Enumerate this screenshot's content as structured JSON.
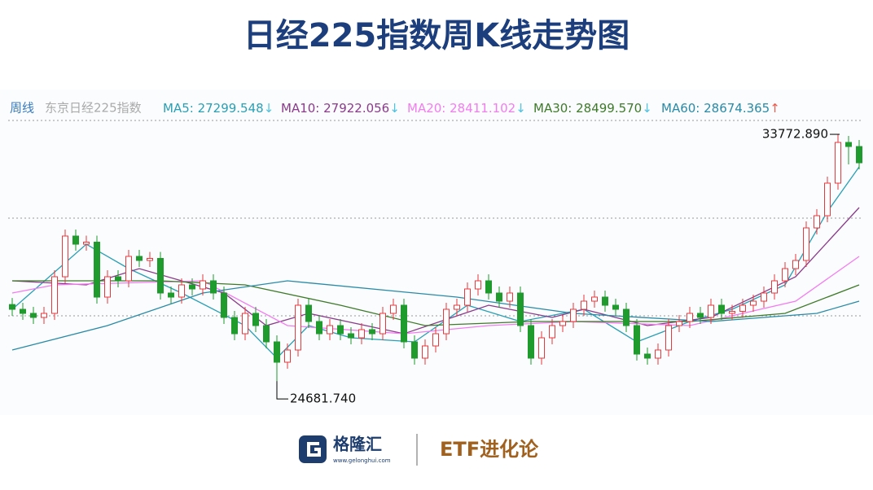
{
  "chart_data": {
    "type": "candlestick",
    "title": "日经225指数周K线走势图",
    "period_label": "周线",
    "index_name": "东京日经225指数",
    "legend_items": [
      {
        "label": "MA5: 27299.548",
        "arrow": "↓",
        "color": "#2a9fb4",
        "arrow_color": "#4cc3e0"
      },
      {
        "label": "MA10: 27922.056",
        "arrow": "↓",
        "color": "#8a3b8a",
        "arrow_color": "#4cc3e0"
      },
      {
        "label": "MA20: 28411.102",
        "arrow": "↓",
        "color": "#f37cf0",
        "arrow_color": "#4cc3e0"
      },
      {
        "label": "MA30: 28499.570",
        "arrow": "↓",
        "color": "#3f7a2a",
        "arrow_color": "#4cc3e0"
      },
      {
        "label": "MA60: 28674.365",
        "arrow": "↑",
        "color": "#2a8aa6",
        "arrow_color": "#f05a4a"
      }
    ],
    "ylim": [
      23424,
      34524
    ],
    "grid_levels": [
      34284,
      30684,
      27084
    ],
    "up_color": "#e8383d",
    "down_color": "#1f9a2c",
    "ohlc": [
      [
        27500,
        27740,
        27084,
        27324
      ],
      [
        27324,
        27564,
        26934,
        27174
      ],
      [
        27174,
        27414,
        26784,
        27024
      ],
      [
        27024,
        27414,
        26784,
        27174
      ],
      [
        27174,
        28764,
        26934,
        28524
      ],
      [
        28524,
        30264,
        28284,
        30024
      ],
      [
        30024,
        30264,
        29484,
        29724
      ],
      [
        29724,
        30040,
        29484,
        29800
      ],
      [
        29800,
        30040,
        27534,
        27774
      ],
      [
        27774,
        28764,
        27534,
        28524
      ],
      [
        28524,
        28764,
        28134,
        28374
      ],
      [
        28374,
        29514,
        28134,
        29274
      ],
      [
        29274,
        29514,
        28884,
        29124
      ],
      [
        29124,
        29440,
        28884,
        29200
      ],
      [
        29200,
        29440,
        27684,
        27924
      ],
      [
        27924,
        28164,
        27534,
        27774
      ],
      [
        27774,
        28464,
        27534,
        28224
      ],
      [
        28224,
        28464,
        27834,
        28074
      ],
      [
        28074,
        28614,
        27834,
        28374
      ],
      [
        28374,
        28614,
        27684,
        27924
      ],
      [
        27924,
        28164,
        26784,
        27024
      ],
      [
        27024,
        27264,
        26184,
        26424
      ],
      [
        26424,
        27414,
        26184,
        27174
      ],
      [
        27174,
        27414,
        26484,
        26724
      ],
      [
        26724,
        26964,
        25884,
        26124
      ],
      [
        26124,
        26364,
        24681.74,
        25374
      ],
      [
        25374,
        26064,
        25134,
        25824
      ],
      [
        25824,
        27714,
        25584,
        27474
      ],
      [
        27474,
        27714,
        26634,
        26874
      ],
      [
        26874,
        27114,
        26184,
        26424
      ],
      [
        26424,
        26964,
        26184,
        26724
      ],
      [
        26724,
        26964,
        26184,
        26424
      ],
      [
        26424,
        26664,
        26034,
        26274
      ],
      [
        26274,
        26814,
        26034,
        26574
      ],
      [
        26574,
        26814,
        26184,
        26424
      ],
      [
        26424,
        27414,
        26184,
        27174
      ],
      [
        27174,
        27714,
        26934,
        27474
      ],
      [
        27474,
        27714,
        25884,
        26124
      ],
      [
        26124,
        26364,
        25284,
        25524
      ],
      [
        25524,
        26214,
        25284,
        25974
      ],
      [
        25974,
        26664,
        25734,
        26424
      ],
      [
        26424,
        27564,
        26184,
        27324
      ],
      [
        27324,
        27714,
        27084,
        27474
      ],
      [
        27474,
        28314,
        27234,
        28074
      ],
      [
        28074,
        28614,
        27834,
        28374
      ],
      [
        28374,
        28614,
        27684,
        27924
      ],
      [
        27924,
        28164,
        27384,
        27624
      ],
      [
        27624,
        28164,
        27384,
        27924
      ],
      [
        27924,
        28164,
        26484,
        26724
      ],
      [
        26724,
        26964,
        25284,
        25524
      ],
      [
        25524,
        26514,
        25284,
        26274
      ],
      [
        26274,
        26964,
        26034,
        26724
      ],
      [
        26724,
        27114,
        26484,
        26874
      ],
      [
        26874,
        27564,
        26634,
        27324
      ],
      [
        27324,
        27864,
        27084,
        27624
      ],
      [
        27624,
        28014,
        27384,
        27774
      ],
      [
        27774,
        28014,
        27234,
        27474
      ],
      [
        27474,
        27714,
        27084,
        27324
      ],
      [
        27324,
        27564,
        26484,
        26724
      ],
      [
        26724,
        26964,
        25434,
        25674
      ],
      [
        25674,
        25914,
        25284,
        25524
      ],
      [
        25524,
        26064,
        25284,
        25824
      ],
      [
        25824,
        26964,
        25584,
        26724
      ],
      [
        26724,
        27114,
        26484,
        26874
      ],
      [
        26874,
        27414,
        26634,
        27174
      ],
      [
        27174,
        27414,
        26784,
        27024
      ],
      [
        27024,
        27714,
        26784,
        27474
      ],
      [
        27474,
        27714,
        26934,
        27174
      ],
      [
        27174,
        27490,
        26934,
        27250
      ],
      [
        27250,
        27714,
        27010,
        27474
      ],
      [
        27474,
        27864,
        27234,
        27624
      ],
      [
        27624,
        28164,
        27384,
        27924
      ],
      [
        27924,
        28614,
        27684,
        28374
      ],
      [
        28374,
        29064,
        28134,
        28824
      ],
      [
        28824,
        29364,
        28584,
        29124
      ],
      [
        29124,
        30564,
        28884,
        30324
      ],
      [
        30324,
        31014,
        30084,
        30774
      ],
      [
        30774,
        32214,
        30534,
        31974
      ],
      [
        31974,
        33772.89,
        31734,
        33474
      ],
      [
        33474,
        33714,
        32664,
        33324
      ],
      [
        33324,
        33564,
        32484,
        32724
      ]
    ],
    "series": [
      {
        "name": "MA5",
        "color": "#2a9fb4",
        "x": [
          0,
          7,
          11,
          16,
          22,
          25,
          28,
          32,
          38,
          43,
          48,
          54,
          59,
          64,
          68,
          73,
          77,
          80
        ],
        "values": [
          27324,
          29724,
          28824,
          27924,
          26724,
          25524,
          26724,
          26274,
          26124,
          27474,
          26874,
          27324,
          26124,
          26874,
          27324,
          28224,
          30924,
          32574
        ]
      },
      {
        "name": "MA10",
        "color": "#8a3b8a",
        "x": [
          0,
          7,
          12,
          20,
          24,
          28,
          37,
          45,
          51,
          54,
          60,
          66,
          74,
          80
        ],
        "values": [
          28374,
          28224,
          28824,
          27924,
          26724,
          27174,
          26424,
          27474,
          27024,
          27324,
          26724,
          27024,
          28524,
          31074
        ]
      },
      {
        "name": "MA20",
        "color": "#f37cf0",
        "x": [
          0,
          4,
          18,
          26,
          37,
          45,
          53,
          64,
          74,
          80
        ],
        "values": [
          27924,
          28224,
          28374,
          26724,
          26424,
          26724,
          26874,
          26724,
          27624,
          29274
        ]
      },
      {
        "name": "MA30",
        "color": "#3f7a2a",
        "x": [
          0,
          14,
          22,
          31,
          39,
          49,
          64,
          73,
          80
        ],
        "values": [
          28374,
          28374,
          28224,
          27474,
          26724,
          26874,
          26874,
          27174,
          28224
        ]
      },
      {
        "name": "MA60",
        "color": "#2a8aa6",
        "x": [
          0,
          9,
          18,
          26,
          42,
          53,
          66,
          76,
          80
        ],
        "values": [
          25824,
          26724,
          27924,
          28374,
          27774,
          27174,
          26874,
          27174,
          27624
        ]
      }
    ],
    "annotations": [
      {
        "text": "33772.890",
        "at": 78,
        "price": 33772.89
      },
      {
        "text": "24681.740",
        "at": 25,
        "price": 24681.74
      }
    ]
  },
  "footer": {
    "brand": "格隆汇",
    "url": "www.gelonghui.com",
    "column": "ETF进化论"
  }
}
